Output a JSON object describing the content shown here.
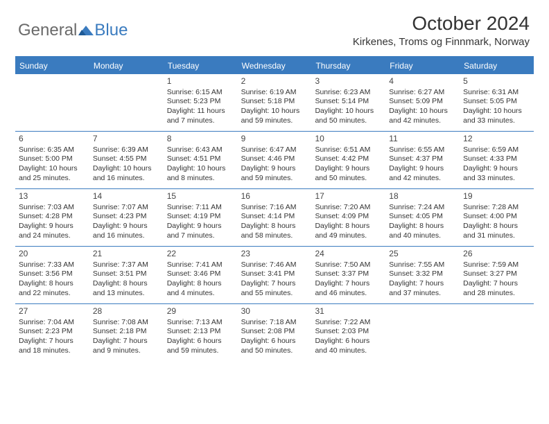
{
  "brand": {
    "part1": "General",
    "part2": "Blue"
  },
  "title": "October 2024",
  "location": "Kirkenes, Troms og Finnmark, Norway",
  "day_labels": [
    "Sunday",
    "Monday",
    "Tuesday",
    "Wednesday",
    "Thursday",
    "Friday",
    "Saturday"
  ],
  "colors": {
    "header_bg": "#3a7bbf",
    "header_text": "#ffffff",
    "border": "#3a7bbf",
    "text": "#333333",
    "logo_gray": "#6a6a6a",
    "logo_blue": "#3a7bbf"
  },
  "weeks": [
    [
      {
        "day": "",
        "lines": []
      },
      {
        "day": "",
        "lines": []
      },
      {
        "day": "1",
        "lines": [
          "Sunrise: 6:15 AM",
          "Sunset: 5:23 PM",
          "Daylight: 11 hours",
          "and 7 minutes."
        ]
      },
      {
        "day": "2",
        "lines": [
          "Sunrise: 6:19 AM",
          "Sunset: 5:18 PM",
          "Daylight: 10 hours",
          "and 59 minutes."
        ]
      },
      {
        "day": "3",
        "lines": [
          "Sunrise: 6:23 AM",
          "Sunset: 5:14 PM",
          "Daylight: 10 hours",
          "and 50 minutes."
        ]
      },
      {
        "day": "4",
        "lines": [
          "Sunrise: 6:27 AM",
          "Sunset: 5:09 PM",
          "Daylight: 10 hours",
          "and 42 minutes."
        ]
      },
      {
        "day": "5",
        "lines": [
          "Sunrise: 6:31 AM",
          "Sunset: 5:05 PM",
          "Daylight: 10 hours",
          "and 33 minutes."
        ]
      }
    ],
    [
      {
        "day": "6",
        "lines": [
          "Sunrise: 6:35 AM",
          "Sunset: 5:00 PM",
          "Daylight: 10 hours",
          "and 25 minutes."
        ]
      },
      {
        "day": "7",
        "lines": [
          "Sunrise: 6:39 AM",
          "Sunset: 4:55 PM",
          "Daylight: 10 hours",
          "and 16 minutes."
        ]
      },
      {
        "day": "8",
        "lines": [
          "Sunrise: 6:43 AM",
          "Sunset: 4:51 PM",
          "Daylight: 10 hours",
          "and 8 minutes."
        ]
      },
      {
        "day": "9",
        "lines": [
          "Sunrise: 6:47 AM",
          "Sunset: 4:46 PM",
          "Daylight: 9 hours",
          "and 59 minutes."
        ]
      },
      {
        "day": "10",
        "lines": [
          "Sunrise: 6:51 AM",
          "Sunset: 4:42 PM",
          "Daylight: 9 hours",
          "and 50 minutes."
        ]
      },
      {
        "day": "11",
        "lines": [
          "Sunrise: 6:55 AM",
          "Sunset: 4:37 PM",
          "Daylight: 9 hours",
          "and 42 minutes."
        ]
      },
      {
        "day": "12",
        "lines": [
          "Sunrise: 6:59 AM",
          "Sunset: 4:33 PM",
          "Daylight: 9 hours",
          "and 33 minutes."
        ]
      }
    ],
    [
      {
        "day": "13",
        "lines": [
          "Sunrise: 7:03 AM",
          "Sunset: 4:28 PM",
          "Daylight: 9 hours",
          "and 24 minutes."
        ]
      },
      {
        "day": "14",
        "lines": [
          "Sunrise: 7:07 AM",
          "Sunset: 4:23 PM",
          "Daylight: 9 hours",
          "and 16 minutes."
        ]
      },
      {
        "day": "15",
        "lines": [
          "Sunrise: 7:11 AM",
          "Sunset: 4:19 PM",
          "Daylight: 9 hours",
          "and 7 minutes."
        ]
      },
      {
        "day": "16",
        "lines": [
          "Sunrise: 7:16 AM",
          "Sunset: 4:14 PM",
          "Daylight: 8 hours",
          "and 58 minutes."
        ]
      },
      {
        "day": "17",
        "lines": [
          "Sunrise: 7:20 AM",
          "Sunset: 4:09 PM",
          "Daylight: 8 hours",
          "and 49 minutes."
        ]
      },
      {
        "day": "18",
        "lines": [
          "Sunrise: 7:24 AM",
          "Sunset: 4:05 PM",
          "Daylight: 8 hours",
          "and 40 minutes."
        ]
      },
      {
        "day": "19",
        "lines": [
          "Sunrise: 7:28 AM",
          "Sunset: 4:00 PM",
          "Daylight: 8 hours",
          "and 31 minutes."
        ]
      }
    ],
    [
      {
        "day": "20",
        "lines": [
          "Sunrise: 7:33 AM",
          "Sunset: 3:56 PM",
          "Daylight: 8 hours",
          "and 22 minutes."
        ]
      },
      {
        "day": "21",
        "lines": [
          "Sunrise: 7:37 AM",
          "Sunset: 3:51 PM",
          "Daylight: 8 hours",
          "and 13 minutes."
        ]
      },
      {
        "day": "22",
        "lines": [
          "Sunrise: 7:41 AM",
          "Sunset: 3:46 PM",
          "Daylight: 8 hours",
          "and 4 minutes."
        ]
      },
      {
        "day": "23",
        "lines": [
          "Sunrise: 7:46 AM",
          "Sunset: 3:41 PM",
          "Daylight: 7 hours",
          "and 55 minutes."
        ]
      },
      {
        "day": "24",
        "lines": [
          "Sunrise: 7:50 AM",
          "Sunset: 3:37 PM",
          "Daylight: 7 hours",
          "and 46 minutes."
        ]
      },
      {
        "day": "25",
        "lines": [
          "Sunrise: 7:55 AM",
          "Sunset: 3:32 PM",
          "Daylight: 7 hours",
          "and 37 minutes."
        ]
      },
      {
        "day": "26",
        "lines": [
          "Sunrise: 7:59 AM",
          "Sunset: 3:27 PM",
          "Daylight: 7 hours",
          "and 28 minutes."
        ]
      }
    ],
    [
      {
        "day": "27",
        "lines": [
          "Sunrise: 7:04 AM",
          "Sunset: 2:23 PM",
          "Daylight: 7 hours",
          "and 18 minutes."
        ]
      },
      {
        "day": "28",
        "lines": [
          "Sunrise: 7:08 AM",
          "Sunset: 2:18 PM",
          "Daylight: 7 hours",
          "and 9 minutes."
        ]
      },
      {
        "day": "29",
        "lines": [
          "Sunrise: 7:13 AM",
          "Sunset: 2:13 PM",
          "Daylight: 6 hours",
          "and 59 minutes."
        ]
      },
      {
        "day": "30",
        "lines": [
          "Sunrise: 7:18 AM",
          "Sunset: 2:08 PM",
          "Daylight: 6 hours",
          "and 50 minutes."
        ]
      },
      {
        "day": "31",
        "lines": [
          "Sunrise: 7:22 AM",
          "Sunset: 2:03 PM",
          "Daylight: 6 hours",
          "and 40 minutes."
        ]
      },
      {
        "day": "",
        "lines": []
      },
      {
        "day": "",
        "lines": []
      }
    ]
  ]
}
